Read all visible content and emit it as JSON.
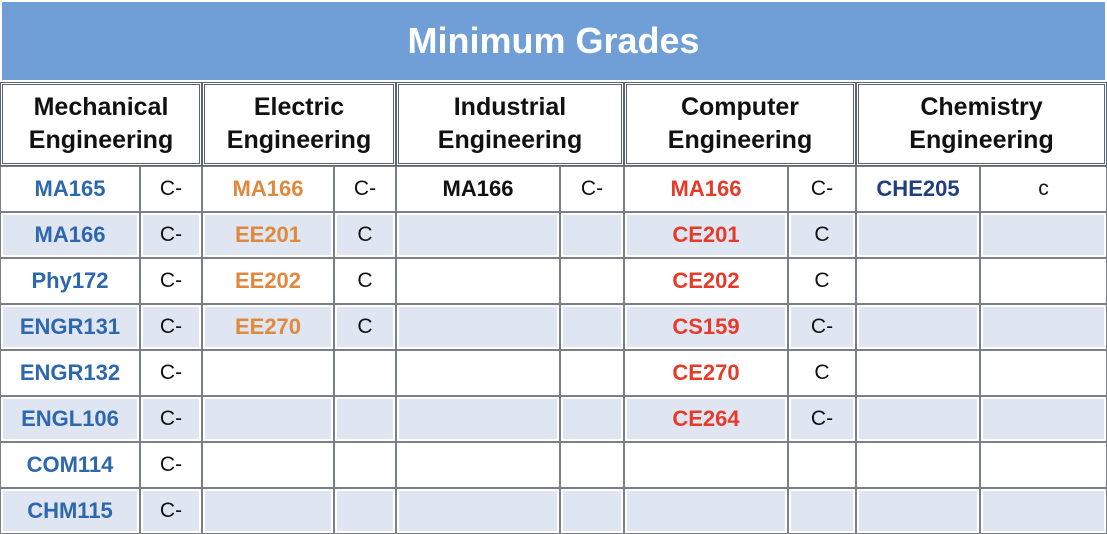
{
  "title": "Minimum Grades",
  "colors": {
    "title_bar": "#6f9fd6",
    "mechanical": "#2d67ad",
    "electric": "#e0893d",
    "industrial": "#111111",
    "computer": "#e63b2b",
    "chemistry": "#1f3f7e"
  },
  "departments": [
    {
      "name": "Mechanical Engineering",
      "line1": "Mechanical",
      "line2": "Engineering"
    },
    {
      "name": "Electric Engineering",
      "line1": "Electric",
      "line2": "Engineering"
    },
    {
      "name": "Industrial Engineering",
      "line1": "Industrial",
      "line2": "Engineering"
    },
    {
      "name": "Computer Engineering",
      "line1": "Computer",
      "line2": "Engineering"
    },
    {
      "name": "Chemistry Engineering",
      "line1": "Chemistry",
      "line2": "Engineering"
    }
  ],
  "rows": [
    [
      [
        "MA165",
        "C-"
      ],
      [
        "MA166",
        "C-"
      ],
      [
        "MA166",
        "C-"
      ],
      [
        "MA166",
        "C-"
      ],
      [
        "CHE205",
        "c"
      ]
    ],
    [
      [
        "MA166",
        "C-"
      ],
      [
        "EE201",
        "C"
      ],
      [
        "",
        ""
      ],
      [
        "CE201",
        "C"
      ],
      [
        "",
        ""
      ]
    ],
    [
      [
        "Phy172",
        "C-"
      ],
      [
        "EE202",
        "C"
      ],
      [
        "",
        ""
      ],
      [
        "CE202",
        "C"
      ],
      [
        "",
        ""
      ]
    ],
    [
      [
        "ENGR131",
        "C-"
      ],
      [
        "EE270",
        "C"
      ],
      [
        "",
        ""
      ],
      [
        "CS159",
        "C-"
      ],
      [
        "",
        ""
      ]
    ],
    [
      [
        "ENGR132",
        "C-"
      ],
      [
        "",
        ""
      ],
      [
        "",
        ""
      ],
      [
        "CE270",
        "C"
      ],
      [
        "",
        ""
      ]
    ],
    [
      [
        "ENGL106",
        "C-"
      ],
      [
        "",
        ""
      ],
      [
        "",
        ""
      ],
      [
        "CE264",
        "C-"
      ],
      [
        "",
        ""
      ]
    ],
    [
      [
        "COM114",
        "C-"
      ],
      [
        "",
        ""
      ],
      [
        "",
        ""
      ],
      [
        "",
        ""
      ],
      [
        "",
        ""
      ]
    ],
    [
      [
        "CHM115",
        "C-"
      ],
      [
        "",
        ""
      ],
      [
        "",
        ""
      ],
      [
        "",
        ""
      ],
      [
        "",
        ""
      ]
    ]
  ]
}
